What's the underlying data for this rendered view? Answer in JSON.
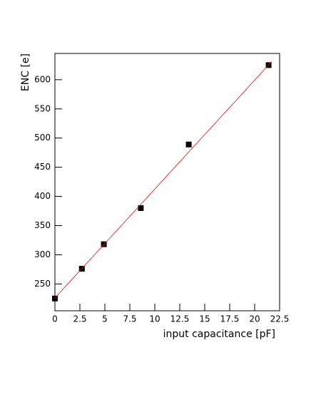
{
  "chart_data": {
    "type": "scatter",
    "xlabel": "input capacitance [pF]",
    "ylabel": "ENC [e]",
    "series": [
      {
        "color": "#000000",
        "x": [
          0,
          2.7,
          4.9,
          8.6,
          13.4,
          21.4
        ],
        "values": [
          225,
          276,
          318,
          380,
          489,
          625
        ]
      },
      {
        "color": "#ff0000",
        "line": true,
        "x": [
          0,
          21.7
        ],
        "values": [
          226,
          631
        ]
      }
    ],
    "xlim": [
      0,
      22.5
    ],
    "xticks": [
      0,
      2.5,
      5,
      7.5,
      10,
      12.5,
      15,
      17.5,
      20,
      22.5
    ],
    "ylim": [
      204,
      645
    ],
    "yticks": [
      250,
      300,
      350,
      400,
      450,
      500,
      550,
      600
    ]
  }
}
